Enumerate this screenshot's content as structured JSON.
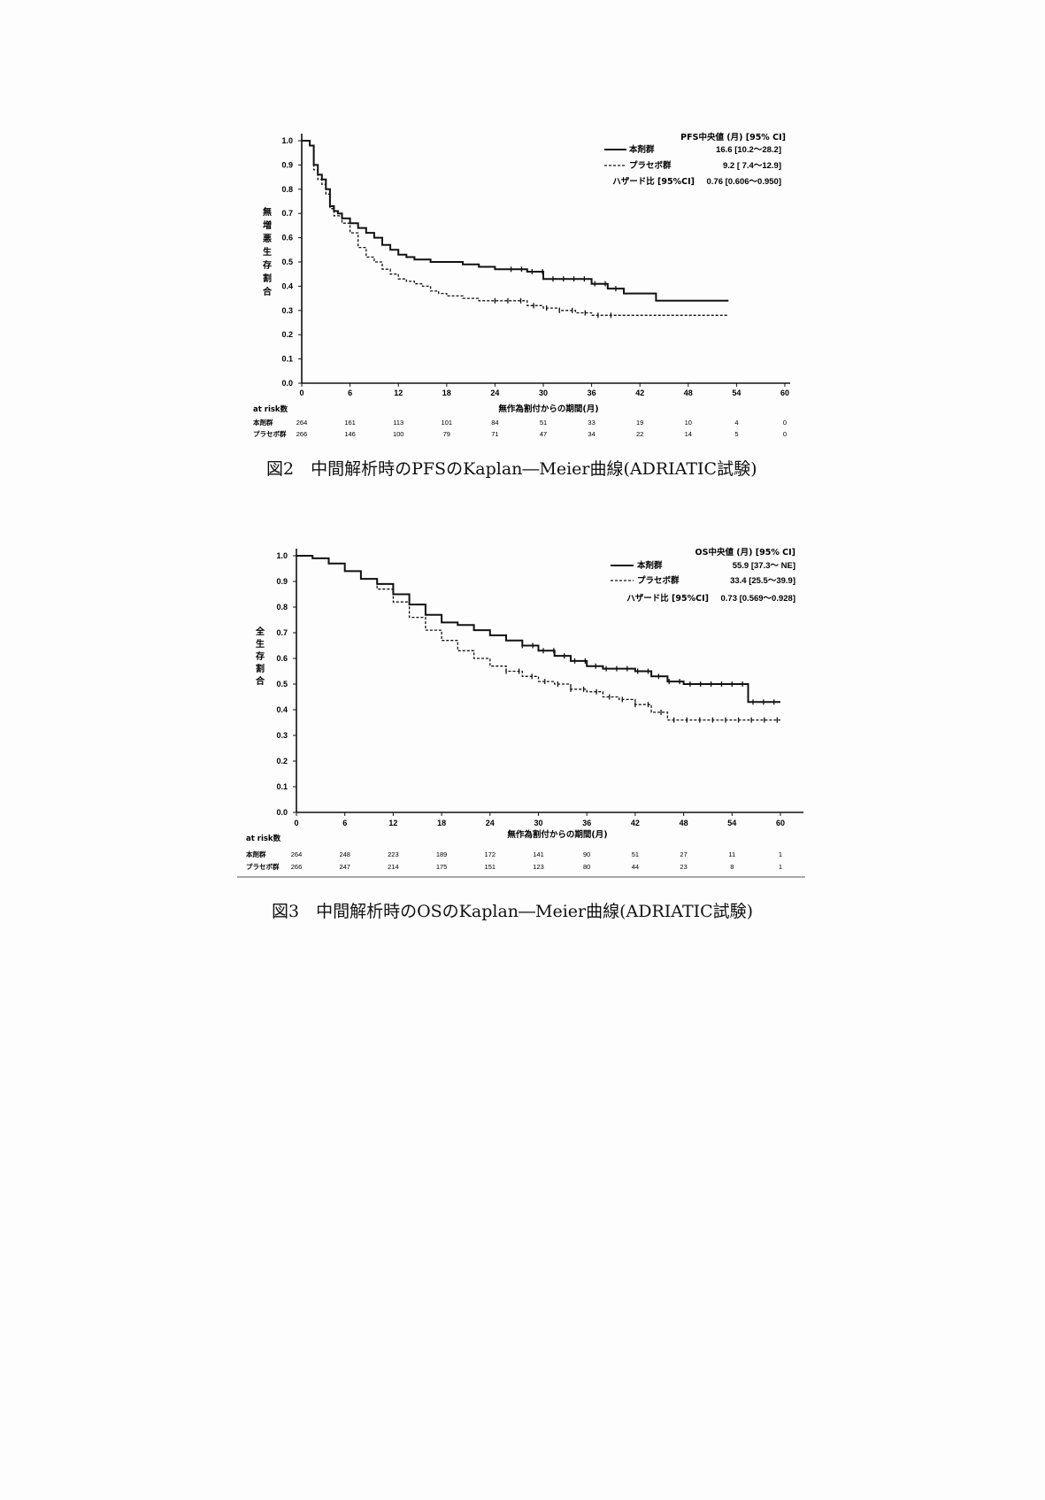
{
  "figures": [
    {
      "caption": "図2　中間解析時のPFSのKaplan―Meier曲線(ADRIATIC試験)",
      "chart_data": {
        "type": "line",
        "title": "",
        "ylabel": "無増悪生存割合",
        "xlabel": "無作為割付からの期間(月)",
        "xlim": [
          0,
          60
        ],
        "ylim": [
          0.0,
          1.0
        ],
        "xticks": [
          "0",
          "6",
          "12",
          "18",
          "24",
          "30",
          "36",
          "42",
          "48",
          "54",
          "60"
        ],
        "yticks": [
          "0.0",
          "0.1",
          "0.2",
          "0.3",
          "0.4",
          "0.5",
          "0.6",
          "0.7",
          "0.8",
          "0.9",
          "1.0"
        ],
        "legend": {
          "header": "PFS中央値 (月) [95% CI]",
          "entries": [
            {
              "line": "——",
              "name": "本剤群",
              "value": "16.6 [10.2～28.2]"
            },
            {
              "line": "------",
              "name": "プラセボ群",
              "value": "9.2 [ 7.4～12.9]"
            }
          ],
          "hazard_label": "ハザード比 [95%CI]",
          "hazard_value": "0.76 [0.606～0.950]"
        },
        "series": [
          {
            "name": "本剤群",
            "style": "solid",
            "x": [
              0,
              1,
              1.5,
              2,
              2.5,
              3,
              3.5,
              4,
              4.5,
              5,
              6,
              7,
              8,
              9,
              10,
              11,
              12,
              13,
              14,
              15,
              16,
              18,
              20,
              22,
              24,
              26,
              28,
              30,
              32,
              34,
              36,
              38,
              40,
              42,
              43,
              44,
              48,
              53
            ],
            "y": [
              1.0,
              0.98,
              0.9,
              0.86,
              0.84,
              0.8,
              0.73,
              0.71,
              0.7,
              0.68,
              0.66,
              0.64,
              0.62,
              0.6,
              0.57,
              0.55,
              0.53,
              0.52,
              0.51,
              0.51,
              0.5,
              0.5,
              0.49,
              0.48,
              0.47,
              0.47,
              0.46,
              0.43,
              0.43,
              0.43,
              0.41,
              0.39,
              0.37,
              0.37,
              0.37,
              0.34,
              0.34,
              0.34
            ]
          },
          {
            "name": "プラセボ群",
            "style": "dashed",
            "x": [
              0,
              1,
              1.5,
              2,
              2.5,
              3,
              3.5,
              4,
              5,
              6,
              7,
              8,
              9,
              10,
              11,
              12,
              13,
              14,
              15,
              16,
              17,
              18,
              20,
              22,
              24,
              26,
              28,
              30,
              32,
              34,
              36,
              38,
              42,
              48,
              53
            ],
            "y": [
              1.0,
              0.98,
              0.88,
              0.84,
              0.82,
              0.78,
              0.72,
              0.69,
              0.66,
              0.62,
              0.56,
              0.52,
              0.5,
              0.47,
              0.45,
              0.43,
              0.42,
              0.41,
              0.4,
              0.38,
              0.37,
              0.36,
              0.35,
              0.34,
              0.34,
              0.34,
              0.32,
              0.31,
              0.3,
              0.29,
              0.28,
              0.28,
              0.28,
              0.28,
              0.28
            ]
          }
        ],
        "at_risk": {
          "header": "at risk数",
          "rows": [
            {
              "label": "本剤群",
              "values": [
                "264",
                "161",
                "113",
                "101",
                "84",
                "51",
                "33",
                "19",
                "10",
                "4",
                "0"
              ]
            },
            {
              "label": "プラセボ群",
              "values": [
                "266",
                "146",
                "100",
                "79",
                "71",
                "47",
                "34",
                "22",
                "14",
                "5",
                "0"
              ]
            }
          ]
        }
      }
    },
    {
      "caption": "図3　中間解析時のOSのKaplan―Meier曲線(ADRIATIC試験)",
      "chart_data": {
        "type": "line",
        "title": "",
        "ylabel": "全生存割合",
        "xlabel": "無作為割付からの期間(月)",
        "xlim": [
          0,
          60
        ],
        "ylim": [
          0.0,
          1.0
        ],
        "xticks": [
          "0",
          "6",
          "12",
          "18",
          "24",
          "30",
          "36",
          "42",
          "48",
          "54",
          "60"
        ],
        "yticks": [
          "0.0",
          "0.1",
          "0.2",
          "0.3",
          "0.4",
          "0.5",
          "0.6",
          "0.7",
          "0.8",
          "0.9",
          "1.0"
        ],
        "legend": {
          "header": "OS中央値 (月) [95% CI]",
          "entries": [
            {
              "line": "——",
              "name": "本剤群",
              "value": "55.9 [37.3～ NE]"
            },
            {
              "line": "------",
              "name": "プラセボ群",
              "value": "33.4 [25.5～39.9]"
            }
          ],
          "hazard_label": "ハザード比 [95%CI]",
          "hazard_value": "0.73 [0.569～0.928]"
        },
        "series": [
          {
            "name": "本剤群",
            "style": "solid",
            "x": [
              0,
              2,
              4,
              6,
              8,
              10,
              12,
              14,
              16,
              18,
              20,
              22,
              24,
              26,
              28,
              30,
              32,
              34,
              36,
              38,
              40,
              42,
              44,
              46,
              48,
              50,
              52,
              54,
              56,
              58,
              60
            ],
            "y": [
              1.0,
              0.99,
              0.97,
              0.94,
              0.91,
              0.89,
              0.85,
              0.81,
              0.77,
              0.74,
              0.73,
              0.71,
              0.69,
              0.67,
              0.65,
              0.63,
              0.61,
              0.59,
              0.57,
              0.56,
              0.56,
              0.55,
              0.53,
              0.51,
              0.5,
              0.5,
              0.5,
              0.5,
              0.43,
              0.43,
              0.43
            ]
          },
          {
            "name": "プラセボ群",
            "style": "dashed",
            "x": [
              0,
              2,
              4,
              6,
              8,
              10,
              12,
              14,
              16,
              18,
              20,
              22,
              24,
              26,
              28,
              30,
              32,
              34,
              36,
              38,
              40,
              42,
              44,
              46,
              48,
              50,
              52,
              54,
              56,
              58,
              60
            ],
            "y": [
              1.0,
              0.99,
              0.97,
              0.94,
              0.91,
              0.87,
              0.82,
              0.76,
              0.71,
              0.67,
              0.63,
              0.6,
              0.57,
              0.55,
              0.53,
              0.51,
              0.5,
              0.48,
              0.47,
              0.45,
              0.44,
              0.42,
              0.39,
              0.36,
              0.36,
              0.36,
              0.36,
              0.36,
              0.36,
              0.36,
              0.36
            ]
          }
        ],
        "at_risk": {
          "header": "at risk数",
          "rows": [
            {
              "label": "本剤群",
              "values": [
                "264",
                "248",
                "223",
                "189",
                "172",
                "141",
                "90",
                "51",
                "27",
                "11",
                "1"
              ]
            },
            {
              "label": "プラセボ群",
              "values": [
                "266",
                "247",
                "214",
                "175",
                "151",
                "123",
                "80",
                "44",
                "23",
                "8",
                "1"
              ]
            }
          ]
        }
      }
    }
  ]
}
